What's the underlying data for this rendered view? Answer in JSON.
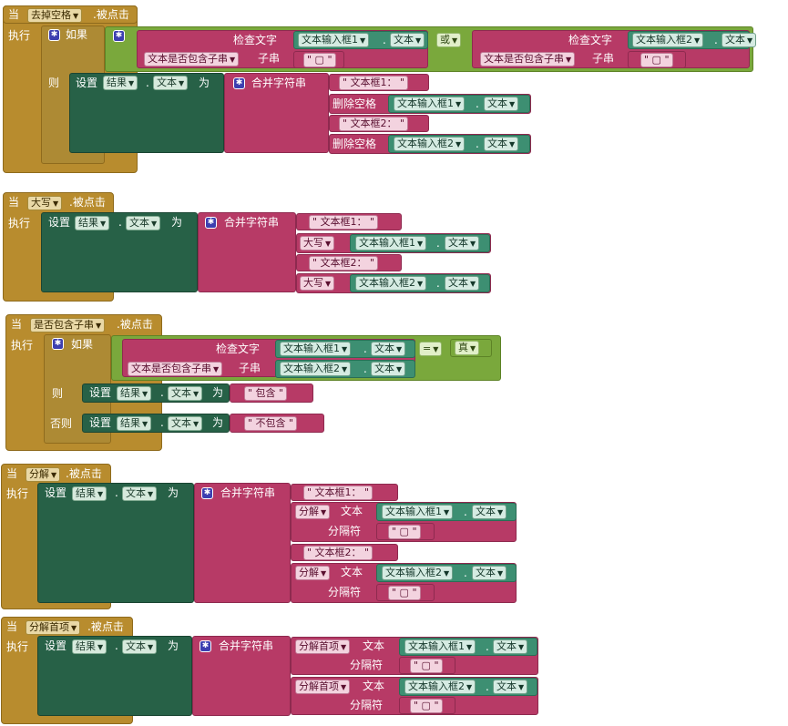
{
  "keywords": {
    "when": "当",
    "clicked": ".被点击",
    "do": "执行",
    "if": "如果",
    "then": "则",
    "else": "否则",
    "set": "设置",
    "to": "为",
    "dot": ".",
    "join": "合并字符串",
    "contains_text": "检查文字",
    "contains_mode": "文本是否包含子串",
    "substring": "子串",
    "or": "或",
    "eq": "=",
    "true_val": "真",
    "trim": "删除空格",
    "upcase": "大写",
    "split": "分解",
    "split_first": "分解首项",
    "text_kw": "文本",
    "delimiter": "分隔符"
  },
  "components": {
    "result": "结果",
    "input1": "文本输入框1",
    "input2": "文本输入框2",
    "prop_text": "文本"
  },
  "strings": {
    "label1": "\" 文本框1： \"",
    "label2": "\" 文本框2： \"",
    "space": "\" ▢ \"",
    "contains_yes": "\" 包含 \"",
    "contains_no": "\" 不包含 \""
  },
  "buttons": {
    "trim_button": "去掉空格",
    "upcase_button": "大写",
    "contains_button": "是否包含子串",
    "split_button": "分解",
    "split_first_button": "分解首项"
  }
}
